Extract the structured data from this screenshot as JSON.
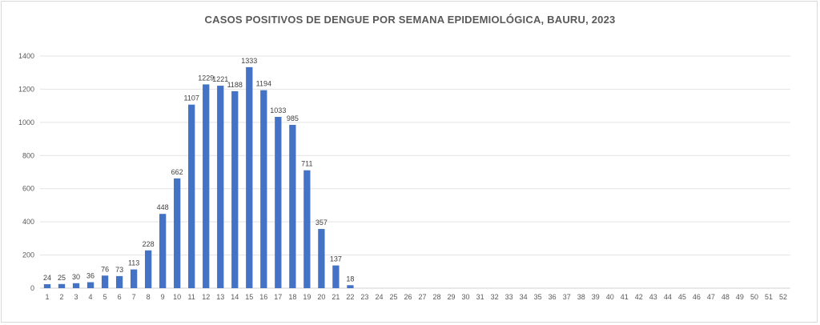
{
  "chart_data": {
    "type": "bar",
    "title": "CASOS POSITIVOS DE DENGUE POR SEMANA EPIDEMIOLÓGICA,  BAURU, 2023",
    "xlabel": "",
    "ylabel": "",
    "categories": [
      "1",
      "2",
      "3",
      "4",
      "5",
      "6",
      "7",
      "8",
      "9",
      "10",
      "11",
      "12",
      "13",
      "14",
      "15",
      "16",
      "17",
      "18",
      "19",
      "20",
      "21",
      "22",
      "23",
      "24",
      "25",
      "26",
      "27",
      "28",
      "29",
      "30",
      "31",
      "32",
      "33",
      "34",
      "35",
      "36",
      "37",
      "38",
      "39",
      "40",
      "41",
      "42",
      "43",
      "44",
      "45",
      "46",
      "47",
      "48",
      "49",
      "50",
      "51",
      "52"
    ],
    "values": [
      24,
      25,
      30,
      36,
      76,
      73,
      113,
      228,
      448,
      662,
      1107,
      1229,
      1221,
      1188,
      1333,
      1194,
      1033,
      985,
      711,
      357,
      137,
      18,
      null,
      null,
      null,
      null,
      null,
      null,
      null,
      null,
      null,
      null,
      null,
      null,
      null,
      null,
      null,
      null,
      null,
      null,
      null,
      null,
      null,
      null,
      null,
      null,
      null,
      null,
      null,
      null,
      null,
      null
    ],
    "ylim": [
      0,
      1400
    ],
    "yticks": [
      0,
      200,
      400,
      600,
      800,
      1000,
      1200,
      1400
    ],
    "grid": true,
    "legend": "none",
    "bar_color": "#4472c4"
  }
}
